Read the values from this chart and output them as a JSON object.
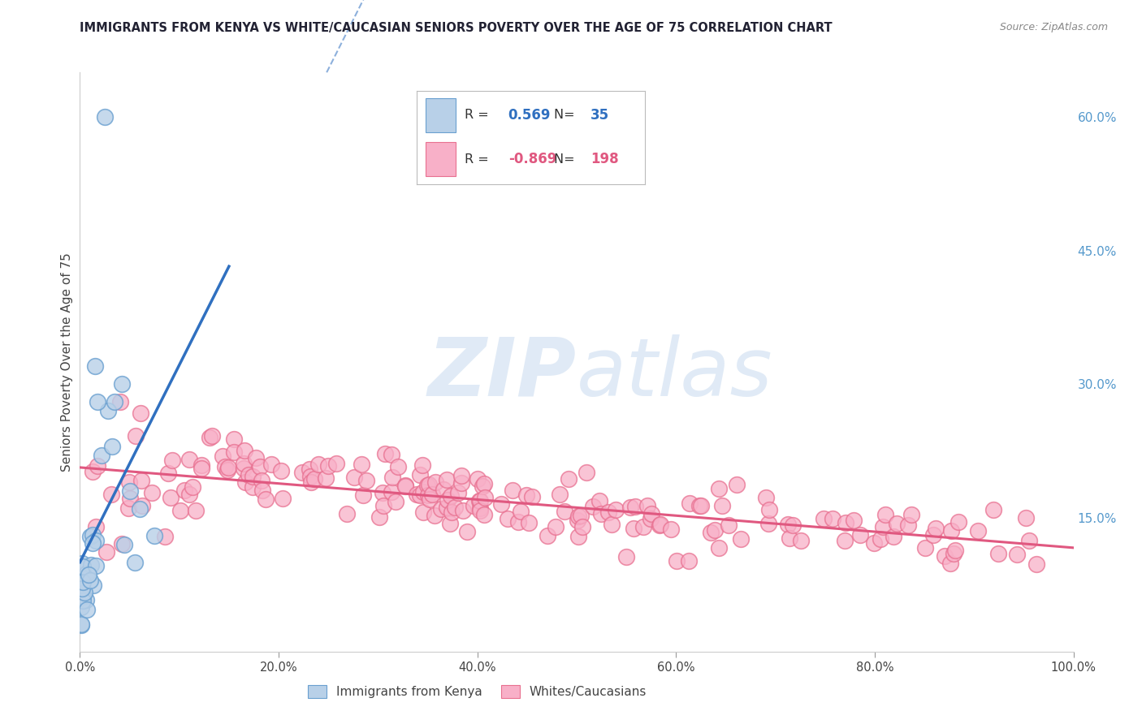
{
  "title": "IMMIGRANTS FROM KENYA VS WHITE/CAUCASIAN SENIORS POVERTY OVER THE AGE OF 75 CORRELATION CHART",
  "source": "Source: ZipAtlas.com",
  "ylabel": "Seniors Poverty Over the Age of 75",
  "xlim": [
    0,
    1.0
  ],
  "ylim": [
    -0.02,
    0.68
  ],
  "plot_ylim": [
    0.0,
    0.65
  ],
  "right_yticks": [
    0.15,
    0.3,
    0.45,
    0.6
  ],
  "right_ytick_labels": [
    "15.0%",
    "30.0%",
    "45.0%",
    "60.0%"
  ],
  "xtick_positions": [
    0.0,
    0.2,
    0.4,
    0.6,
    0.8,
    1.0
  ],
  "xtick_labels": [
    "0.0%",
    "20.0%",
    "40.0%",
    "60.0%",
    "80.0%",
    "100.0%"
  ],
  "blue_color_fill": "#b8d0e8",
  "blue_color_edge": "#6aa0d0",
  "pink_color_fill": "#f8b0c8",
  "pink_color_edge": "#e87090",
  "blue_line_color": "#3070c0",
  "pink_line_color": "#e05880",
  "title_color": "#222233",
  "source_color": "#888888",
  "right_axis_color": "#5599cc",
  "background_color": "#ffffff",
  "grid_color": "#dddddd",
  "legend_label_blue": "Immigrants from Kenya",
  "legend_label_pink": "Whites/Caucasians",
  "legend_blue_R": "0.569",
  "legend_blue_N": "35",
  "legend_pink_R": "-0.869",
  "legend_pink_N": "198",
  "blue_N": 35,
  "pink_N": 198
}
